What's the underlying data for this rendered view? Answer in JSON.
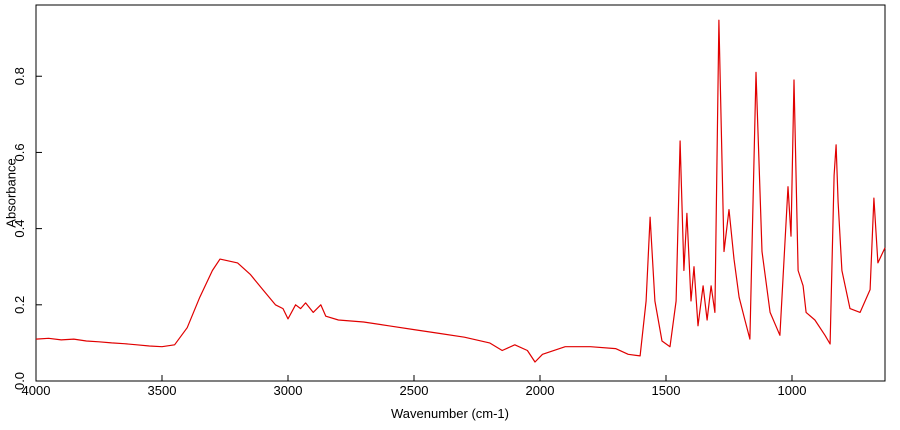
{
  "chart_data": {
    "type": "line",
    "xlabel": "Wavenumber (cm-1)",
    "ylabel": "Absorbance",
    "color": "#e00000",
    "x": [
      4000,
      3950,
      3900,
      3850,
      3800,
      3750,
      3700,
      3650,
      3600,
      3550,
      3500,
      3450,
      3400,
      3350,
      3300,
      3270,
      3200,
      3150,
      3100,
      3050,
      3020,
      3000,
      2970,
      2950,
      2930,
      2900,
      2870,
      2850,
      2800,
      2700,
      2600,
      2500,
      2400,
      2300,
      2200,
      2150,
      2100,
      2050,
      2020,
      1990,
      1900,
      1800,
      1700,
      1650,
      1603,
      1579,
      1563,
      1544,
      1516,
      1484,
      1460,
      1444,
      1429,
      1417,
      1401,
      1389,
      1373,
      1353,
      1337,
      1321,
      1306,
      1290,
      1270,
      1250,
      1230,
      1210,
      1187,
      1167,
      1143,
      1119,
      1087,
      1048,
      1016,
      1004,
      992,
      976,
      956,
      944,
      909,
      869,
      849,
      833,
      825,
      817,
      802,
      770,
      730,
      690,
      675,
      659,
      631
    ],
    "values": [
      0.11,
      0.112,
      0.108,
      0.11,
      0.105,
      0.103,
      0.1,
      0.098,
      0.095,
      0.092,
      0.09,
      0.095,
      0.14,
      0.22,
      0.29,
      0.32,
      0.31,
      0.28,
      0.24,
      0.2,
      0.19,
      0.163,
      0.2,
      0.19,
      0.205,
      0.18,
      0.2,
      0.17,
      0.16,
      0.155,
      0.145,
      0.135,
      0.125,
      0.115,
      0.1,
      0.08,
      0.095,
      0.08,
      0.05,
      0.07,
      0.09,
      0.09,
      0.085,
      0.07,
      0.066,
      0.21,
      0.43,
      0.21,
      0.105,
      0.09,
      0.21,
      0.63,
      0.29,
      0.44,
      0.21,
      0.3,
      0.145,
      0.25,
      0.16,
      0.25,
      0.18,
      0.947,
      0.34,
      0.45,
      0.32,
      0.22,
      0.16,
      0.11,
      0.81,
      0.34,
      0.18,
      0.12,
      0.51,
      0.38,
      0.79,
      0.29,
      0.25,
      0.18,
      0.16,
      0.12,
      0.097,
      0.54,
      0.62,
      0.47,
      0.29,
      0.19,
      0.18,
      0.24,
      0.48,
      0.31,
      0.35
    ],
    "xlim": [
      4000,
      631
    ],
    "xticks": [
      4000,
      3500,
      3000,
      2500,
      2000,
      1500,
      1000
    ],
    "ylim": [
      0,
      0.987
    ],
    "yticks": [
      {
        "value": 0,
        "label": "0.0"
      },
      0.2,
      0.4,
      0.6,
      0.8
    ],
    "grid": false
  }
}
